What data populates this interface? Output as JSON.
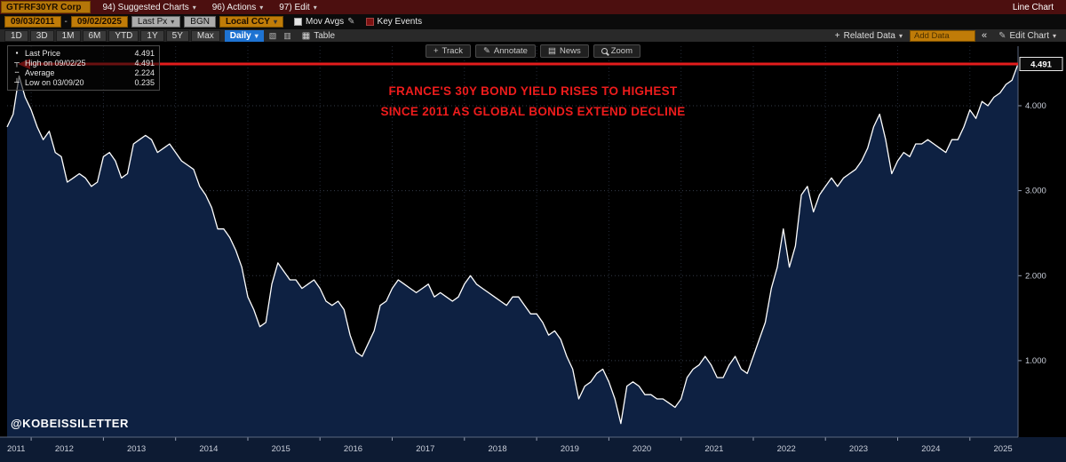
{
  "colors": {
    "amber": "#c07c08",
    "menu_bar_red": "#4c0f0f",
    "accent_blue": "#1e73d2",
    "chart_line": "#ffffff",
    "area_fill": "#0e2142",
    "annotation_red": "#e31c1c",
    "chart_bg": "#000000",
    "axis_strip_bg": "#0d1b33"
  },
  "toolbar_top": {
    "ticker": "GTFRF30YR Corp",
    "menus": [
      {
        "label": "94) Suggested Charts"
      },
      {
        "label": "96) Actions"
      },
      {
        "label": "97) Edit"
      }
    ],
    "chart_type_label": "Line Chart"
  },
  "toolbar_fields": {
    "date_from": "09/03/2011",
    "date_separator": "-",
    "date_to": "09/02/2025",
    "price_type": "Last Px",
    "pricing_source": "BGN",
    "currency": "Local CCY",
    "mov_avgs_label": "Mov Avgs",
    "key_events_label": "Key Events"
  },
  "toolbar_chart": {
    "periods": [
      "1D",
      "3D",
      "1M",
      "6M",
      "YTD",
      "1Y",
      "5Y",
      "Max"
    ],
    "frequency": "Daily",
    "icon_buttons": [
      {
        "name": "draw-tools-icon",
        "glyph": "▧"
      },
      {
        "name": "chart-style-icon",
        "glyph": "▥"
      }
    ],
    "table_icon": "▦",
    "table_label": "Table",
    "tools": [
      {
        "icon": "track-icon",
        "glyph": "+",
        "label": "Track"
      },
      {
        "icon": "annotate-icon",
        "glyph": "✎",
        "label": "Annotate"
      },
      {
        "icon": "news-icon",
        "glyph": "▤",
        "label": "News"
      },
      {
        "icon": "zoom-icon",
        "glyph": "",
        "label": "Zoom"
      }
    ],
    "related_data_label": "Related Data",
    "add_data_placeholder": "Add Data",
    "collapse_label": "«",
    "edit_chart_label": "Edit Chart"
  },
  "legend": {
    "rows": [
      {
        "marker": "last-price-marker",
        "glyph": "▪",
        "label": "Last Price",
        "value": "4.491"
      },
      {
        "marker": "high-marker",
        "glyph": "┬",
        "label": "High on 09/02/25",
        "value": "4.491"
      },
      {
        "marker": "average-marker",
        "glyph": "╌",
        "label": "Average",
        "value": "2.224"
      },
      {
        "marker": "low-marker",
        "glyph": "┴",
        "label": "Low on 03/09/20",
        "value": "0.235"
      }
    ]
  },
  "annotation": {
    "line1": "FRANCE'S 30Y BOND YIELD RISES TO HIGHEST",
    "line2": "SINCE 2011 AS GLOBAL BONDS EXTEND DECLINE"
  },
  "watermark": "@KOBEISSILETTER",
  "chart_data": {
    "type": "area",
    "title": "GTFRF30YR Corp - France 30Y Bond Yield (Last Px, Daily)",
    "x_start": "2011-09",
    "x_end": "2025-09",
    "x_freq": "monthly",
    "values": [
      3.75,
      3.9,
      4.35,
      4.1,
      3.95,
      3.75,
      3.6,
      3.7,
      3.45,
      3.4,
      3.1,
      3.15,
      3.2,
      3.15,
      3.05,
      3.1,
      3.4,
      3.45,
      3.35,
      3.15,
      3.2,
      3.55,
      3.6,
      3.65,
      3.6,
      3.45,
      3.5,
      3.55,
      3.45,
      3.35,
      3.3,
      3.25,
      3.05,
      2.95,
      2.8,
      2.55,
      2.55,
      2.45,
      2.3,
      2.1,
      1.75,
      1.6,
      1.4,
      1.45,
      1.9,
      2.15,
      2.05,
      1.95,
      1.95,
      1.85,
      1.9,
      1.95,
      1.85,
      1.7,
      1.65,
      1.7,
      1.6,
      1.3,
      1.1,
      1.05,
      1.2,
      1.35,
      1.65,
      1.7,
      1.85,
      1.95,
      1.9,
      1.85,
      1.8,
      1.85,
      1.9,
      1.75,
      1.8,
      1.75,
      1.7,
      1.75,
      1.9,
      2.0,
      1.9,
      1.85,
      1.8,
      1.75,
      1.7,
      1.65,
      1.75,
      1.75,
      1.65,
      1.55,
      1.55,
      1.45,
      1.3,
      1.35,
      1.25,
      1.05,
      0.9,
      0.55,
      0.7,
      0.75,
      0.85,
      0.9,
      0.75,
      0.55,
      0.26,
      0.7,
      0.75,
      0.7,
      0.6,
      0.6,
      0.55,
      0.55,
      0.5,
      0.45,
      0.55,
      0.8,
      0.9,
      0.95,
      1.05,
      0.95,
      0.8,
      0.8,
      0.95,
      1.05,
      0.9,
      0.85,
      1.05,
      1.25,
      1.45,
      1.85,
      2.1,
      2.55,
      2.1,
      2.35,
      2.95,
      3.05,
      2.75,
      2.95,
      3.05,
      3.15,
      3.05,
      3.15,
      3.2,
      3.25,
      3.35,
      3.5,
      3.75,
      3.9,
      3.6,
      3.2,
      3.35,
      3.45,
      3.4,
      3.55,
      3.55,
      3.6,
      3.55,
      3.5,
      3.45,
      3.6,
      3.6,
      3.75,
      3.95,
      3.85,
      4.05,
      4.0,
      4.1,
      4.15,
      4.25,
      4.3,
      4.491
    ],
    "last_price": 4.491,
    "last_price_label": "4.491",
    "high": 4.491,
    "average": 2.224,
    "low": 0.235,
    "ylim": [
      0.1,
      4.7
    ],
    "yticks": [
      {
        "v": 1,
        "label": "1.000"
      },
      {
        "v": 2,
        "label": "2.000"
      },
      {
        "v": 3,
        "label": "3.000"
      },
      {
        "v": 4,
        "label": "4.000"
      }
    ],
    "year_labels": [
      "2011",
      "2012",
      "2013",
      "2014",
      "2015",
      "2016",
      "2017",
      "2018",
      "2019",
      "2020",
      "2021",
      "2022",
      "2023",
      "2024",
      "2025"
    ],
    "grid": true,
    "legend_position": "top-left"
  }
}
